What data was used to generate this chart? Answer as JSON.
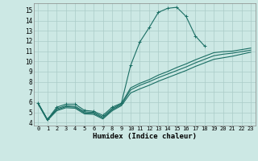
{
  "xlabel": "Humidex (Indice chaleur)",
  "ylabel": "",
  "bg_color": "#cce8e4",
  "grid_color": "#aaccc8",
  "line_color": "#1a6e64",
  "xlim": [
    -0.5,
    23.5
  ],
  "ylim": [
    3.7,
    15.7
  ],
  "yticks": [
    4,
    5,
    6,
    7,
    8,
    9,
    10,
    11,
    12,
    13,
    14,
    15
  ],
  "xticks": [
    0,
    1,
    2,
    3,
    4,
    5,
    6,
    7,
    8,
    9,
    10,
    11,
    12,
    13,
    14,
    15,
    16,
    17,
    18,
    19,
    20,
    21,
    22,
    23
  ],
  "series": [
    {
      "x": [
        0,
        1,
        2,
        3,
        4,
        5,
        6,
        7,
        8,
        9,
        10,
        11,
        12,
        13,
        14,
        15,
        16,
        17,
        18
      ],
      "y": [
        5.9,
        4.3,
        5.5,
        5.8,
        5.8,
        5.2,
        5.1,
        4.7,
        5.5,
        5.9,
        9.6,
        11.9,
        13.3,
        14.8,
        15.2,
        15.3,
        14.4,
        12.5,
        11.5
      ],
      "with_markers": true
    },
    {
      "x": [
        0,
        1,
        2,
        3,
        4,
        5,
        6,
        7,
        8,
        9,
        10,
        11,
        12,
        13,
        14,
        15,
        16,
        17,
        18,
        19,
        20,
        21,
        22,
        23
      ],
      "y": [
        5.9,
        4.3,
        5.35,
        5.65,
        5.6,
        5.05,
        5.0,
        4.55,
        5.35,
        5.85,
        7.4,
        7.85,
        8.2,
        8.65,
        9.0,
        9.4,
        9.75,
        10.15,
        10.5,
        10.85,
        10.95,
        11.0,
        11.15,
        11.3
      ],
      "with_markers": false
    },
    {
      "x": [
        0,
        1,
        2,
        3,
        4,
        5,
        6,
        7,
        8,
        9,
        10,
        11,
        12,
        13,
        14,
        15,
        16,
        17,
        18,
        19,
        20,
        21,
        22,
        23
      ],
      "y": [
        5.85,
        4.25,
        5.25,
        5.55,
        5.5,
        4.95,
        4.9,
        4.45,
        5.25,
        5.75,
        7.2,
        7.65,
        8.0,
        8.4,
        8.75,
        9.1,
        9.45,
        9.85,
        10.2,
        10.55,
        10.7,
        10.8,
        10.95,
        11.1
      ],
      "with_markers": false
    },
    {
      "x": [
        0,
        1,
        2,
        3,
        4,
        5,
        6,
        7,
        8,
        9,
        10,
        11,
        12,
        13,
        14,
        15,
        16,
        17,
        18,
        19,
        20,
        21,
        22,
        23
      ],
      "y": [
        5.8,
        4.2,
        5.15,
        5.45,
        5.4,
        4.85,
        4.8,
        4.35,
        5.15,
        5.65,
        6.9,
        7.3,
        7.65,
        8.05,
        8.4,
        8.75,
        9.1,
        9.5,
        9.85,
        10.2,
        10.35,
        10.5,
        10.7,
        10.9
      ],
      "with_markers": false
    }
  ]
}
